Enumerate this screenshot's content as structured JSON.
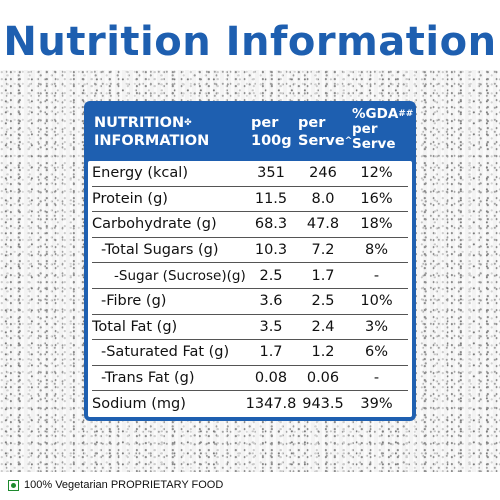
{
  "title": "Nutrition Information",
  "table": {
    "header": {
      "name_line1": "NUTRITION",
      "name_mark": "✤",
      "name_line2": "INFORMATION",
      "per100_line1": "per",
      "per100_line2": "100g",
      "serve_line1": "per",
      "serve_line2": "Serve",
      "serve_mark": "^",
      "gda_line1": "%GDA",
      "gda_mark": "##",
      "gda_line2": "per",
      "gda_line3": "Serve"
    },
    "rows": [
      {
        "name": "Energy (kcal)",
        "per100": "351",
        "serve": "246",
        "gda": "12%"
      },
      {
        "name": "Protein (g)",
        "per100": "11.5",
        "serve": "8.0",
        "gda": "16%"
      },
      {
        "name": "Carbohydrate (g)",
        "per100": "68.3",
        "serve": "47.8",
        "gda": "18%"
      },
      {
        "name": "-Total Sugars (g)",
        "per100": "10.3",
        "serve": "7.2",
        "gda": "8%"
      },
      {
        "name": "-Sugar (Sucrose)(g)",
        "per100": "2.5",
        "serve": "1.7",
        "gda": "-"
      },
      {
        "name": "-Fibre (g)",
        "per100": "3.6",
        "serve": "2.5",
        "gda": "10%"
      },
      {
        "name": "Total Fat (g)",
        "per100": "3.5",
        "serve": "2.4",
        "gda": "3%"
      },
      {
        "name": "-Saturated Fat (g)",
        "per100": "1.7",
        "serve": "1.2",
        "gda": "6%"
      },
      {
        "name": "-Trans Fat (g)",
        "per100": "0.08",
        "serve": "0.06",
        "gda": "-"
      },
      {
        "name": "Sodium (mg)",
        "per100": "1347.8",
        "serve": "943.5",
        "gda": "39%"
      }
    ]
  },
  "footer": {
    "veg_icon": "vegetarian-mark-icon",
    "text": "100% Vegetarian PROPRIETARY FOOD"
  },
  "colors": {
    "accent": "#1e5fb0",
    "veg": "#1e8a2e"
  }
}
